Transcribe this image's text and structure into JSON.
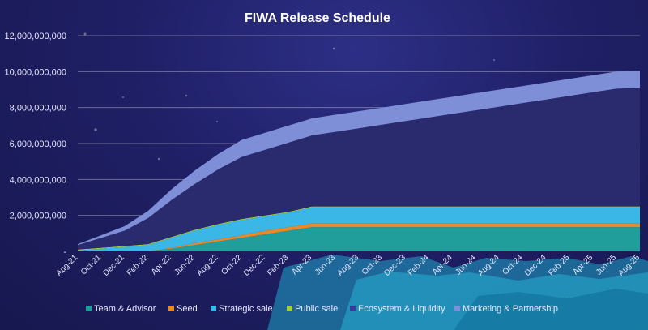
{
  "chart_data": {
    "type": "area",
    "stacked": true,
    "title": "FIWA Release Schedule",
    "xlabel": "",
    "ylabel": "",
    "ylim": [
      0,
      12000000000
    ],
    "yticks": [
      "12,000,000,000",
      "10,000,000,000",
      "8,000,000,000",
      "6,000,000,000",
      "4,000,000,000",
      "2,000,000,000",
      "-"
    ],
    "grid": true,
    "legend_position": "bottom",
    "x": [
      "Aug-21",
      "Oct-21",
      "Dec-21",
      "Feb-22",
      "Apr-22",
      "Jun-22",
      "Aug-22",
      "Oct-22",
      "Dec-22",
      "Feb-23",
      "Apr-23",
      "Jun-23",
      "Aug-23",
      "Oct-23",
      "Dec-23",
      "Feb-24",
      "Apr-24",
      "Jun-24",
      "Aug-24",
      "Oct-24",
      "Dec-24",
      "Feb-25",
      "Apr-25",
      "Jun-25",
      "Aug-25"
    ],
    "series": [
      {
        "name": "Team & Advisor",
        "color": "#1f9e9b",
        "values": [
          0,
          0,
          0,
          0,
          150000000,
          350000000,
          550000000,
          750000000,
          950000000,
          1150000000,
          1350000000,
          1350000000,
          1350000000,
          1350000000,
          1350000000,
          1350000000,
          1350000000,
          1350000000,
          1350000000,
          1350000000,
          1350000000,
          1350000000,
          1350000000,
          1350000000,
          1350000000
        ]
      },
      {
        "name": "Seed",
        "color": "#e88a2a",
        "values": [
          0,
          0,
          0,
          0,
          50000000,
          100000000,
          120000000,
          150000000,
          200000000,
          200000000,
          200000000,
          200000000,
          200000000,
          200000000,
          200000000,
          200000000,
          200000000,
          200000000,
          200000000,
          200000000,
          200000000,
          200000000,
          200000000,
          200000000,
          200000000
        ]
      },
      {
        "name": "Strategic sale",
        "color": "#3ab7e6",
        "values": [
          50000000,
          150000000,
          250000000,
          350000000,
          550000000,
          700000000,
          800000000,
          850000000,
          800000000,
          800000000,
          900000000,
          900000000,
          900000000,
          900000000,
          900000000,
          900000000,
          900000000,
          900000000,
          900000000,
          900000000,
          900000000,
          900000000,
          900000000,
          900000000,
          900000000
        ]
      },
      {
        "name": "Public sale",
        "color": "#a6cf3e",
        "values": [
          50000000,
          50000000,
          50000000,
          50000000,
          50000000,
          50000000,
          50000000,
          50000000,
          50000000,
          50000000,
          50000000,
          50000000,
          50000000,
          50000000,
          50000000,
          50000000,
          50000000,
          50000000,
          50000000,
          50000000,
          50000000,
          50000000,
          50000000,
          50000000,
          50000000
        ]
      },
      {
        "name": "Ecosystem & Liquidity",
        "color": "#2a2a6e",
        "values": [
          250000000,
          550000000,
          850000000,
          1450000000,
          2050000000,
          2550000000,
          3050000000,
          3450000000,
          3650000000,
          3850000000,
          3950000000,
          4150000000,
          4350000000,
          4550000000,
          4750000000,
          4950000000,
          5150000000,
          5350000000,
          5550000000,
          5750000000,
          5950000000,
          6150000000,
          6350000000,
          6550000000,
          6600000000
        ]
      },
      {
        "name": "Marketing & Partnership",
        "color": "#7e8fd8",
        "values": [
          50000000,
          150000000,
          250000000,
          400000000,
          600000000,
          750000000,
          850000000,
          950000000,
          950000000,
          950000000,
          950000000,
          950000000,
          950000000,
          950000000,
          950000000,
          950000000,
          950000000,
          950000000,
          950000000,
          950000000,
          950000000,
          950000000,
          950000000,
          950000000,
          950000000
        ]
      }
    ]
  }
}
